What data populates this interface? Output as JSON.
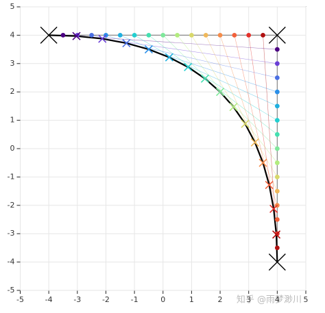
{
  "chart_data": {
    "type": "bezier",
    "xlim": [
      -5,
      5
    ],
    "ylim": [
      -5,
      5
    ],
    "xticks": [
      -5,
      -4,
      -3,
      -2,
      -1,
      0,
      1,
      2,
      3,
      4,
      5
    ],
    "yticks": [
      -5,
      -4,
      -3,
      -2,
      -1,
      0,
      1,
      2,
      3,
      4,
      5
    ],
    "grid": true,
    "control": {
      "x": [
        -4,
        4,
        4
      ],
      "y": [
        4,
        4,
        -4
      ],
      "color": "#000000"
    },
    "guides": {
      "x1": [
        -3.5,
        -3,
        -2.5,
        -2,
        -1.5,
        -1,
        -0.5,
        0,
        0.5,
        1,
        1.5,
        2,
        2.5,
        3,
        3.5
      ],
      "y1": [
        4,
        4,
        4,
        4,
        4,
        4,
        4,
        4,
        4,
        4,
        4,
        4,
        4,
        4,
        4
      ],
      "x2": [
        4,
        4,
        4,
        4,
        4,
        4,
        4,
        4,
        4,
        4,
        4,
        4,
        4,
        4,
        4
      ],
      "y2": [
        3.5,
        3,
        2.5,
        2,
        1.5,
        1,
        0.5,
        0,
        -0.5,
        -1,
        -1.5,
        -2,
        -2.5,
        -3,
        -3.5
      ]
    },
    "curve": {
      "x": [
        -4,
        -3.03125,
        -2.125,
        -1.28125,
        -0.5,
        0.21875,
        0.875,
        1.46875,
        2,
        2.46875,
        2.875,
        3.21875,
        3.5,
        3.71875,
        3.875,
        3.96875,
        4
      ],
      "y": [
        4,
        3.96875,
        3.875,
        3.71875,
        3.5,
        3.21875,
        2.875,
        2.46875,
        2,
        1.46875,
        0.875,
        0.21875,
        -0.5,
        -1.28125,
        -2.125,
        -3.03125,
        -4
      ],
      "color": "#000000"
    },
    "colors": [
      "#4b0082",
      "#6a3fd6",
      "#4a6fe3",
      "#2b8fe8",
      "#1fb0e0",
      "#22cfd0",
      "#43e0b0",
      "#7ee89a",
      "#b2ec7e",
      "#d8d86a",
      "#f0b85a",
      "#f58c4a",
      "#f2603a",
      "#e5302a",
      "#b01010"
    ],
    "watermark": "知乎 @雨梦渺川"
  }
}
